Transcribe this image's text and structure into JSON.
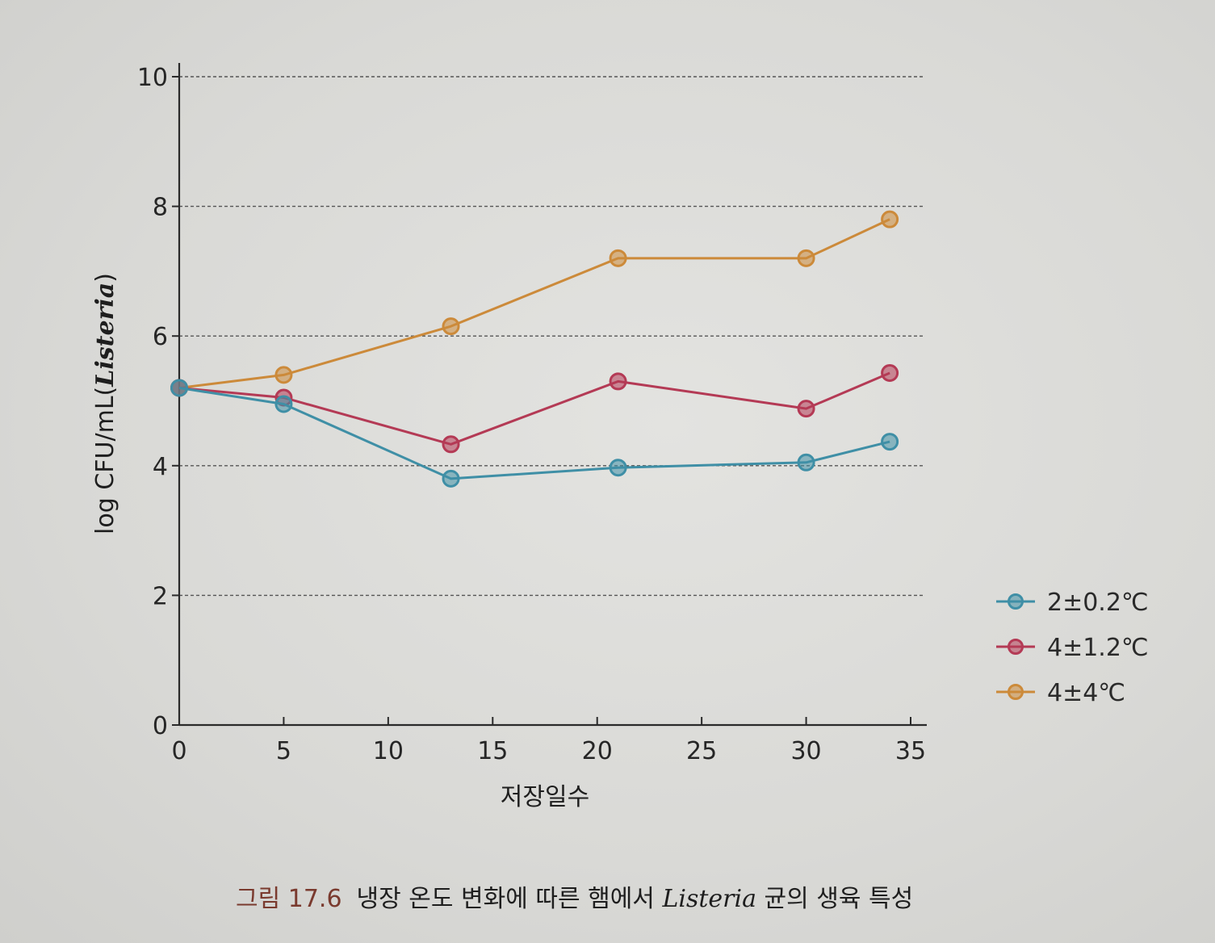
{
  "chart_data": {
    "type": "line",
    "xlabel": "저장일수",
    "ylabel": "log CFU/mL(",
    "ylabel_italic": "Listeria",
    "ylabel_close": ")",
    "xlim": [
      0,
      35
    ],
    "ylim": [
      0,
      10
    ],
    "xticks": [
      "0",
      "5",
      "10",
      "15",
      "20",
      "25",
      "30",
      "35"
    ],
    "yticks": [
      "0",
      "2",
      "4",
      "6",
      "8",
      "10"
    ],
    "grid": "horizontal dashed",
    "legend_position": "right",
    "series": [
      {
        "name": "2±0.2℃",
        "color": "#3f8fa6",
        "x": [
          0,
          5,
          13,
          21,
          30,
          34
        ],
        "y": [
          5.2,
          4.95,
          3.8,
          3.97,
          4.05,
          4.37
        ]
      },
      {
        "name": "4±1.2℃",
        "color": "#b43a55",
        "x": [
          0,
          5,
          13,
          21,
          30,
          34
        ],
        "y": [
          5.2,
          5.05,
          4.33,
          5.3,
          4.88,
          5.43
        ]
      },
      {
        "name": "4±4℃",
        "color": "#cc8a3a",
        "x": [
          0,
          5,
          13,
          21,
          30,
          34
        ],
        "y": [
          5.2,
          5.4,
          6.15,
          7.2,
          7.2,
          7.8
        ]
      }
    ]
  },
  "caption": {
    "figure_number": "그림 17.6",
    "text_before": "냉장 온도 변화에 따른 햄에서 ",
    "organism": "Listeria",
    "text_after": " 균의 생육 특성"
  }
}
